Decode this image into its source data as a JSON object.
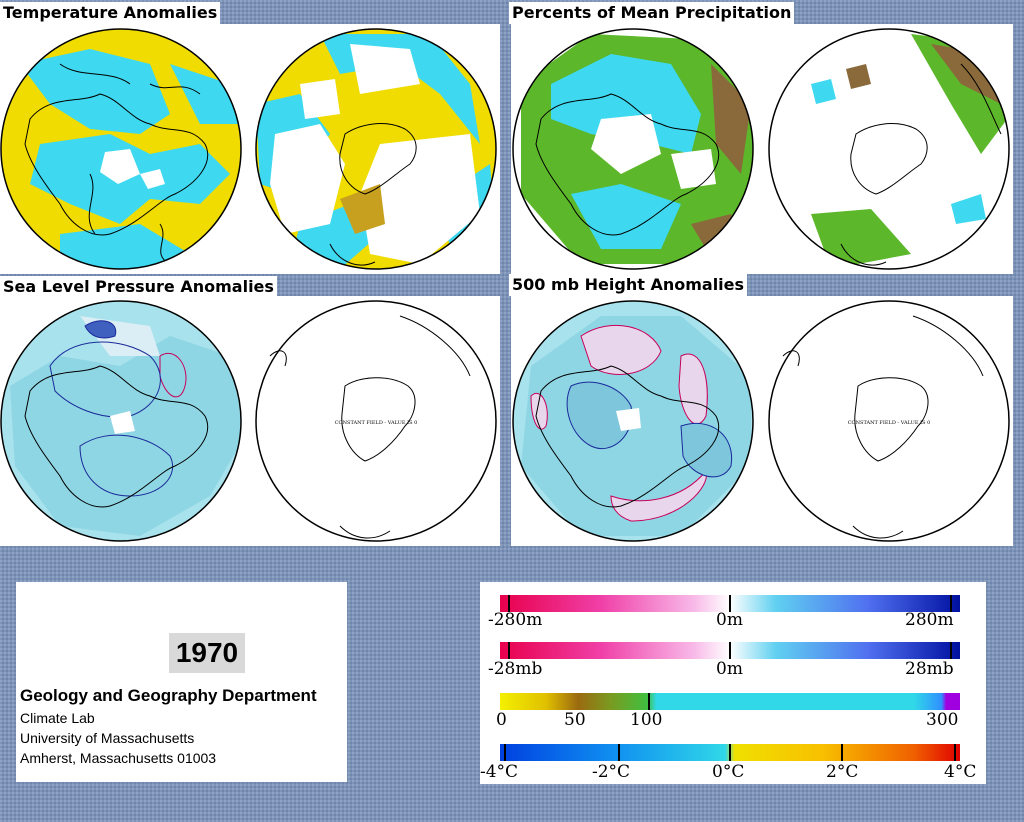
{
  "panels": {
    "temperature": {
      "title": "Temperature Anomalies"
    },
    "precipitation": {
      "title": "Percents of Mean Precipitation"
    },
    "sea_level_pressure": {
      "title": "Sea Level Pressure Anomalies",
      "south_map_note": "CONSTANT FIELD - VALUE IS 0"
    },
    "height_500mb": {
      "title": "500 mb Height Anomalies",
      "south_map_note": "CONSTANT FIELD - VALUE IS 0"
    }
  },
  "info": {
    "year": "1970",
    "department": "Geology and Geography Department",
    "lines": [
      "Climate Lab",
      "University of Massachusetts",
      "Amherst, Massachusetts 01003"
    ]
  },
  "legends": {
    "height": {
      "min": "-280m",
      "mid": "0m",
      "max": "280m",
      "range": [
        -280,
        280
      ]
    },
    "pressure": {
      "min": "-28mb",
      "mid": "0m",
      "max": "28mb",
      "range": [
        -28,
        28
      ]
    },
    "precip": {
      "labels": [
        "0",
        "50",
        "100",
        "300"
      ]
    },
    "temp": {
      "labels": [
        "-4°C",
        "-2°C",
        "0°C",
        "2°C",
        "4°C"
      ],
      "range": [
        -4,
        4
      ]
    }
  },
  "colors": {
    "background": "#7e93b8",
    "warm_yellow": "#f0dc00",
    "cool_cyan": "#3ed8f0",
    "precip_green": "#5cb82a",
    "precip_brown": "#8a6a3a",
    "negative_contour": "#c8005a",
    "positive_contour": "#1a2a9a",
    "anomaly_fill": "#a8e2ec"
  }
}
